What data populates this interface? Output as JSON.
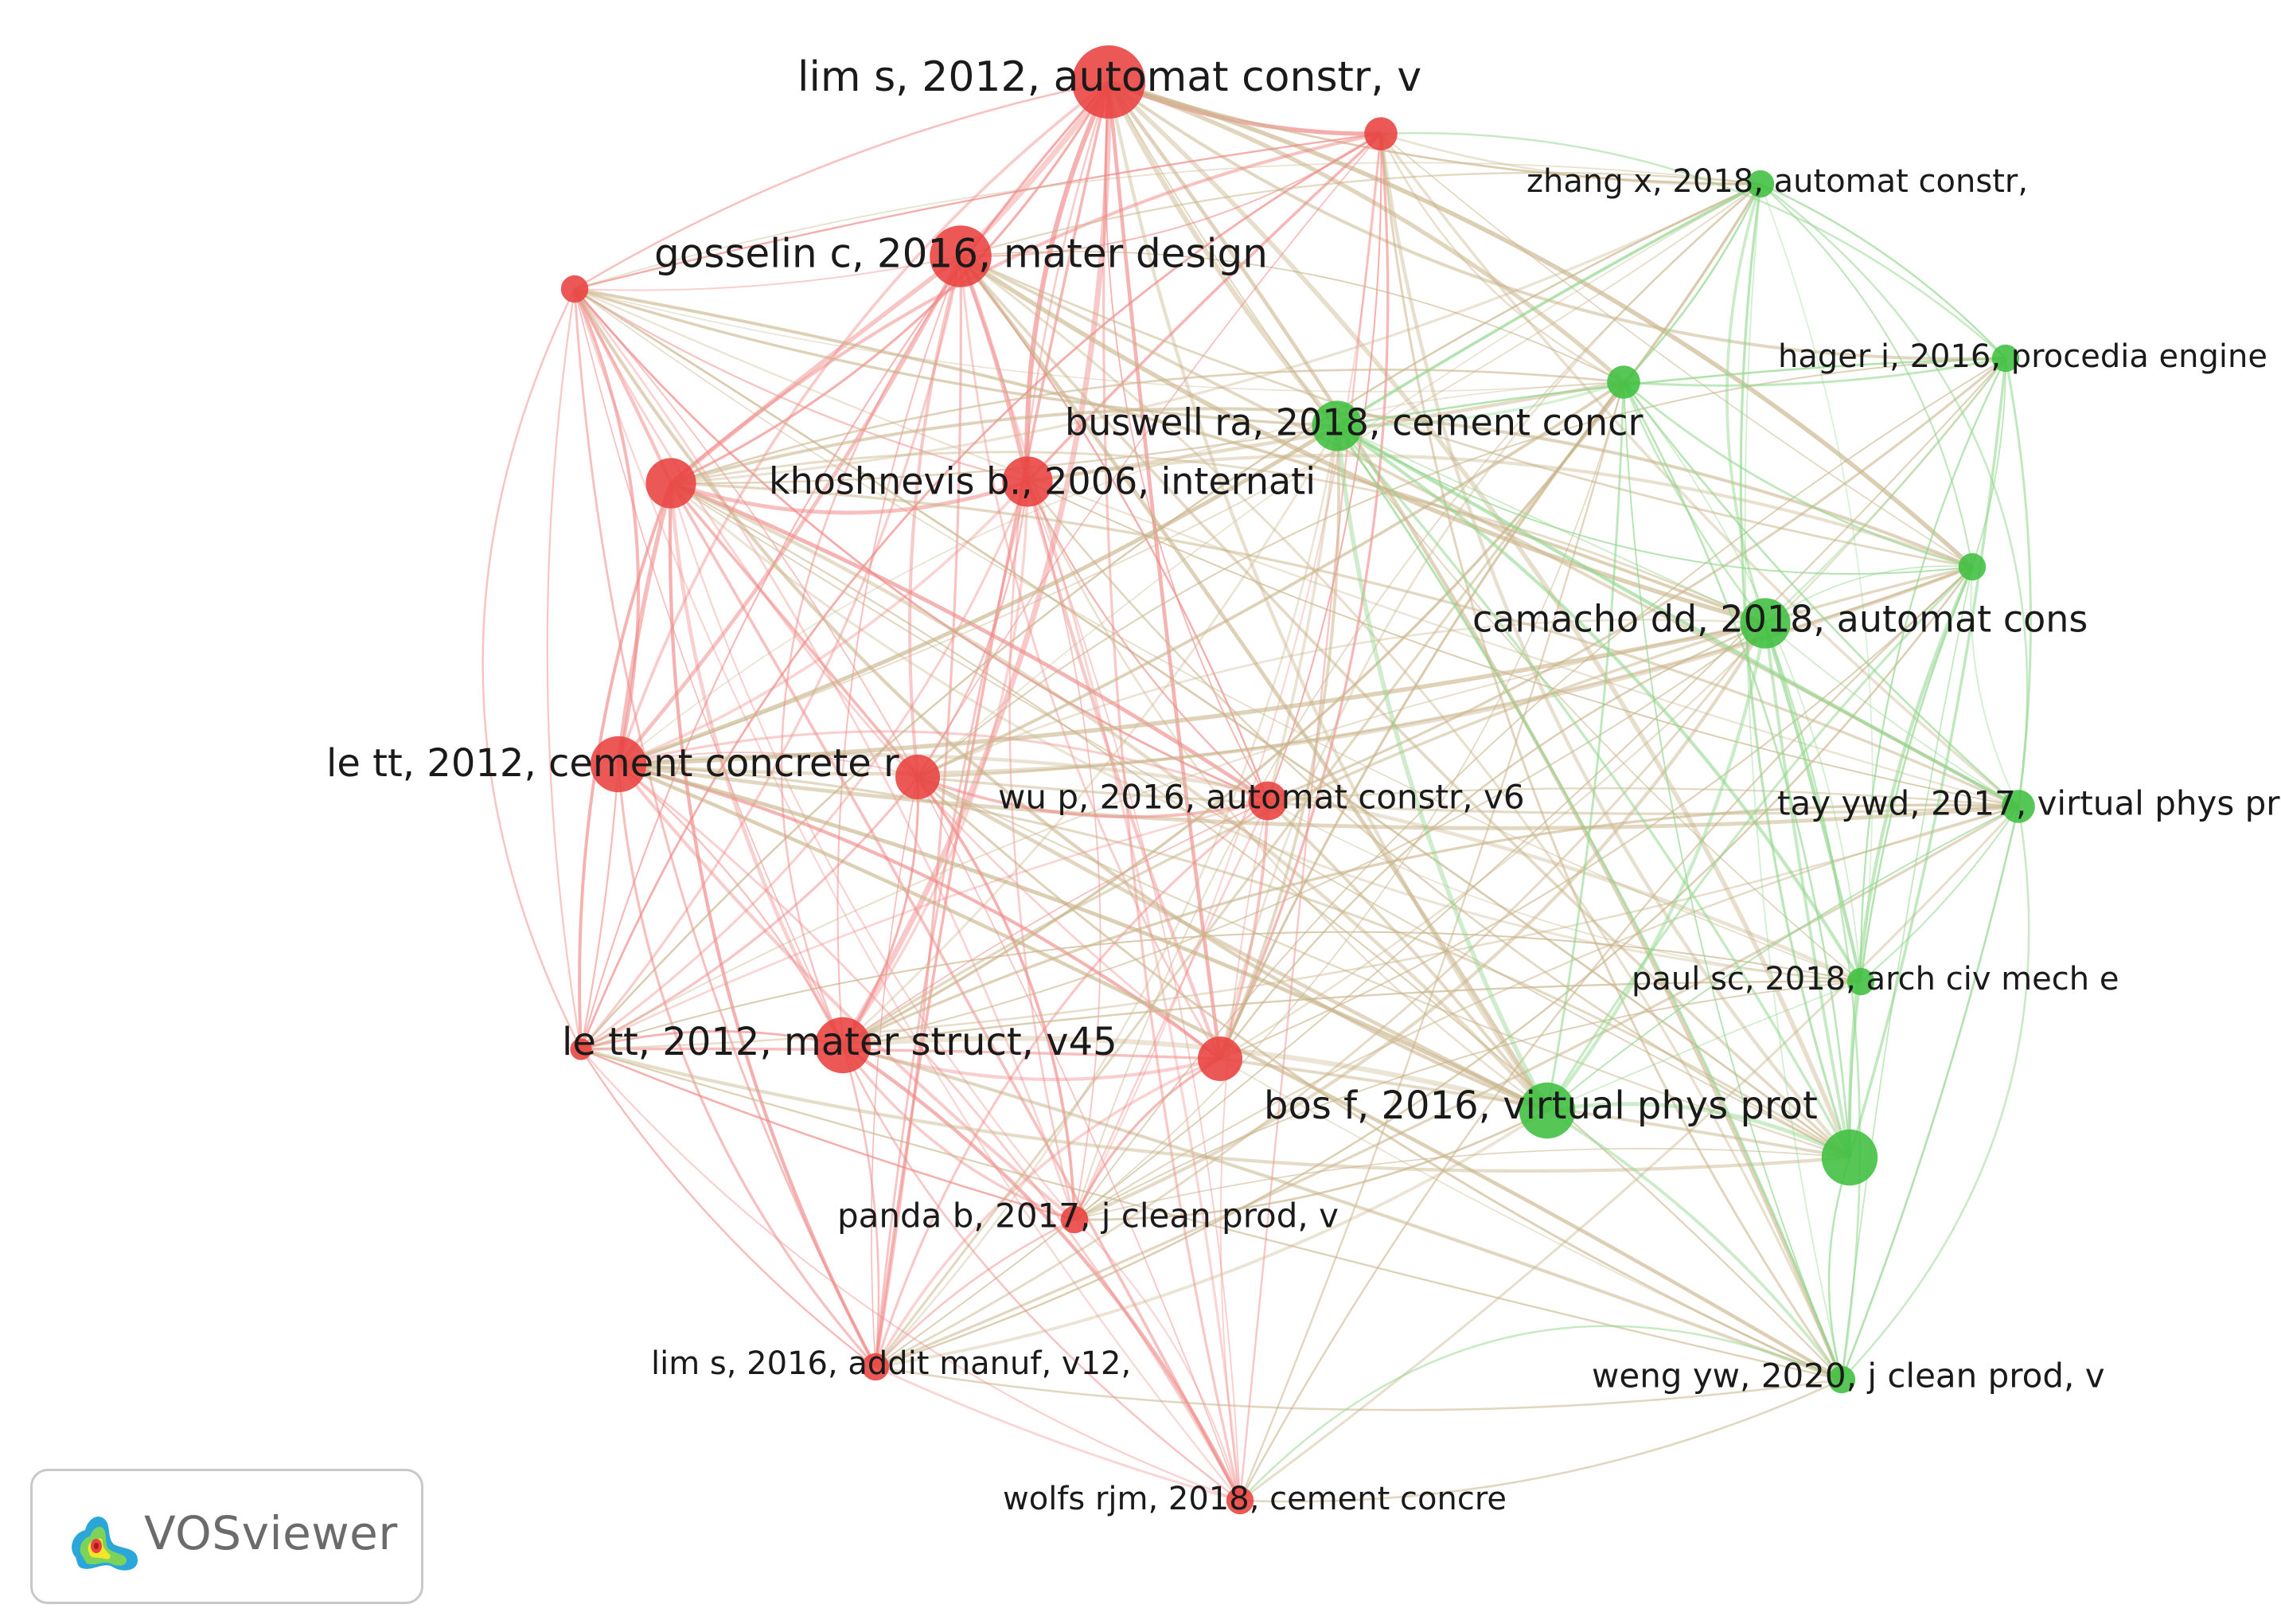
{
  "colors": {
    "cluster_red": "#e8413f",
    "cluster_green": "#3fbf3f",
    "edge_red": "#f08a87",
    "edge_green": "#8fd68a",
    "edge_mixed": "#c9b48a",
    "label": "#1a1a1a",
    "logo_text": "#6b6b6b"
  },
  "nodes": [
    {
      "id": "lim2012",
      "label": "lim s, 2012, automat constr, v",
      "cluster": "red",
      "weight": 10
    },
    {
      "id": "n_red_top",
      "label": "",
      "cluster": "red",
      "weight": 3
    },
    {
      "id": "gosselin",
      "label": "gosselin c, 2016, mater design",
      "cluster": "red",
      "weight": 8
    },
    {
      "id": "n_red_left_small",
      "label": "",
      "cluster": "red",
      "weight": 2
    },
    {
      "id": "n_red_mid_left",
      "label": "",
      "cluster": "red",
      "weight": 6
    },
    {
      "id": "khoshnevis",
      "label": "khoshnevis b., 2006, internati",
      "cluster": "red",
      "weight": 6
    },
    {
      "id": "lett_cement",
      "label": "le tt, 2012, cement concrete r",
      "cluster": "red",
      "weight": 7
    },
    {
      "id": "n_red_center",
      "label": "",
      "cluster": "red",
      "weight": 5
    },
    {
      "id": "wu",
      "label": "wu p, 2016, automat constr, v6",
      "cluster": "red",
      "weight": 4
    },
    {
      "id": "lett_mater",
      "label": "le tt, 2012, mater struct, v45",
      "cluster": "red",
      "weight": 7
    },
    {
      "id": "n_red_lower_mid",
      "label": "",
      "cluster": "red",
      "weight": 5
    },
    {
      "id": "panda",
      "label": "panda b, 2017, j clean prod, v",
      "cluster": "red",
      "weight": 2
    },
    {
      "id": "lim2016",
      "label": "lim s, 2016, addit manuf, v12,",
      "cluster": "red",
      "weight": 2
    },
    {
      "id": "wolfs",
      "label": "wolfs rjm, 2018, cement concre",
      "cluster": "red",
      "weight": 2
    },
    {
      "id": "n_red_far_left",
      "label": "",
      "cluster": "red",
      "weight": 1
    },
    {
      "id": "zhang",
      "label": "zhang x, 2018, automat constr,",
      "cluster": "green",
      "weight": 2
    },
    {
      "id": "hager",
      "label": "hager i, 2016, procedia engine",
      "cluster": "green",
      "weight": 2
    },
    {
      "id": "n_green_top_mid",
      "label": "",
      "cluster": "green",
      "weight": 3
    },
    {
      "id": "buswell",
      "label": "buswell ra, 2018, cement concr",
      "cluster": "green",
      "weight": 6
    },
    {
      "id": "n_green_right_small",
      "label": "",
      "cluster": "green",
      "weight": 2
    },
    {
      "id": "camacho",
      "label": "camacho dd, 2018, automat cons",
      "cluster": "green",
      "weight": 6
    },
    {
      "id": "tay",
      "label": "tay ywd, 2017, virtual phys pr",
      "cluster": "green",
      "weight": 3
    },
    {
      "id": "paul",
      "label": "paul sc, 2018, arch civ mech e",
      "cluster": "green",
      "weight": 2
    },
    {
      "id": "bos",
      "label": "bos f, 2016, virtual phys prot",
      "cluster": "green",
      "weight": 7
    },
    {
      "id": "n_green_lower_right",
      "label": "",
      "cluster": "green",
      "weight": 7
    },
    {
      "id": "weng",
      "label": "weng yw, 2020, j clean prod, v",
      "cluster": "green",
      "weight": 2
    }
  ],
  "logo": {
    "text": "VOSviewer",
    "icon": "vosviewer-density-icon"
  }
}
